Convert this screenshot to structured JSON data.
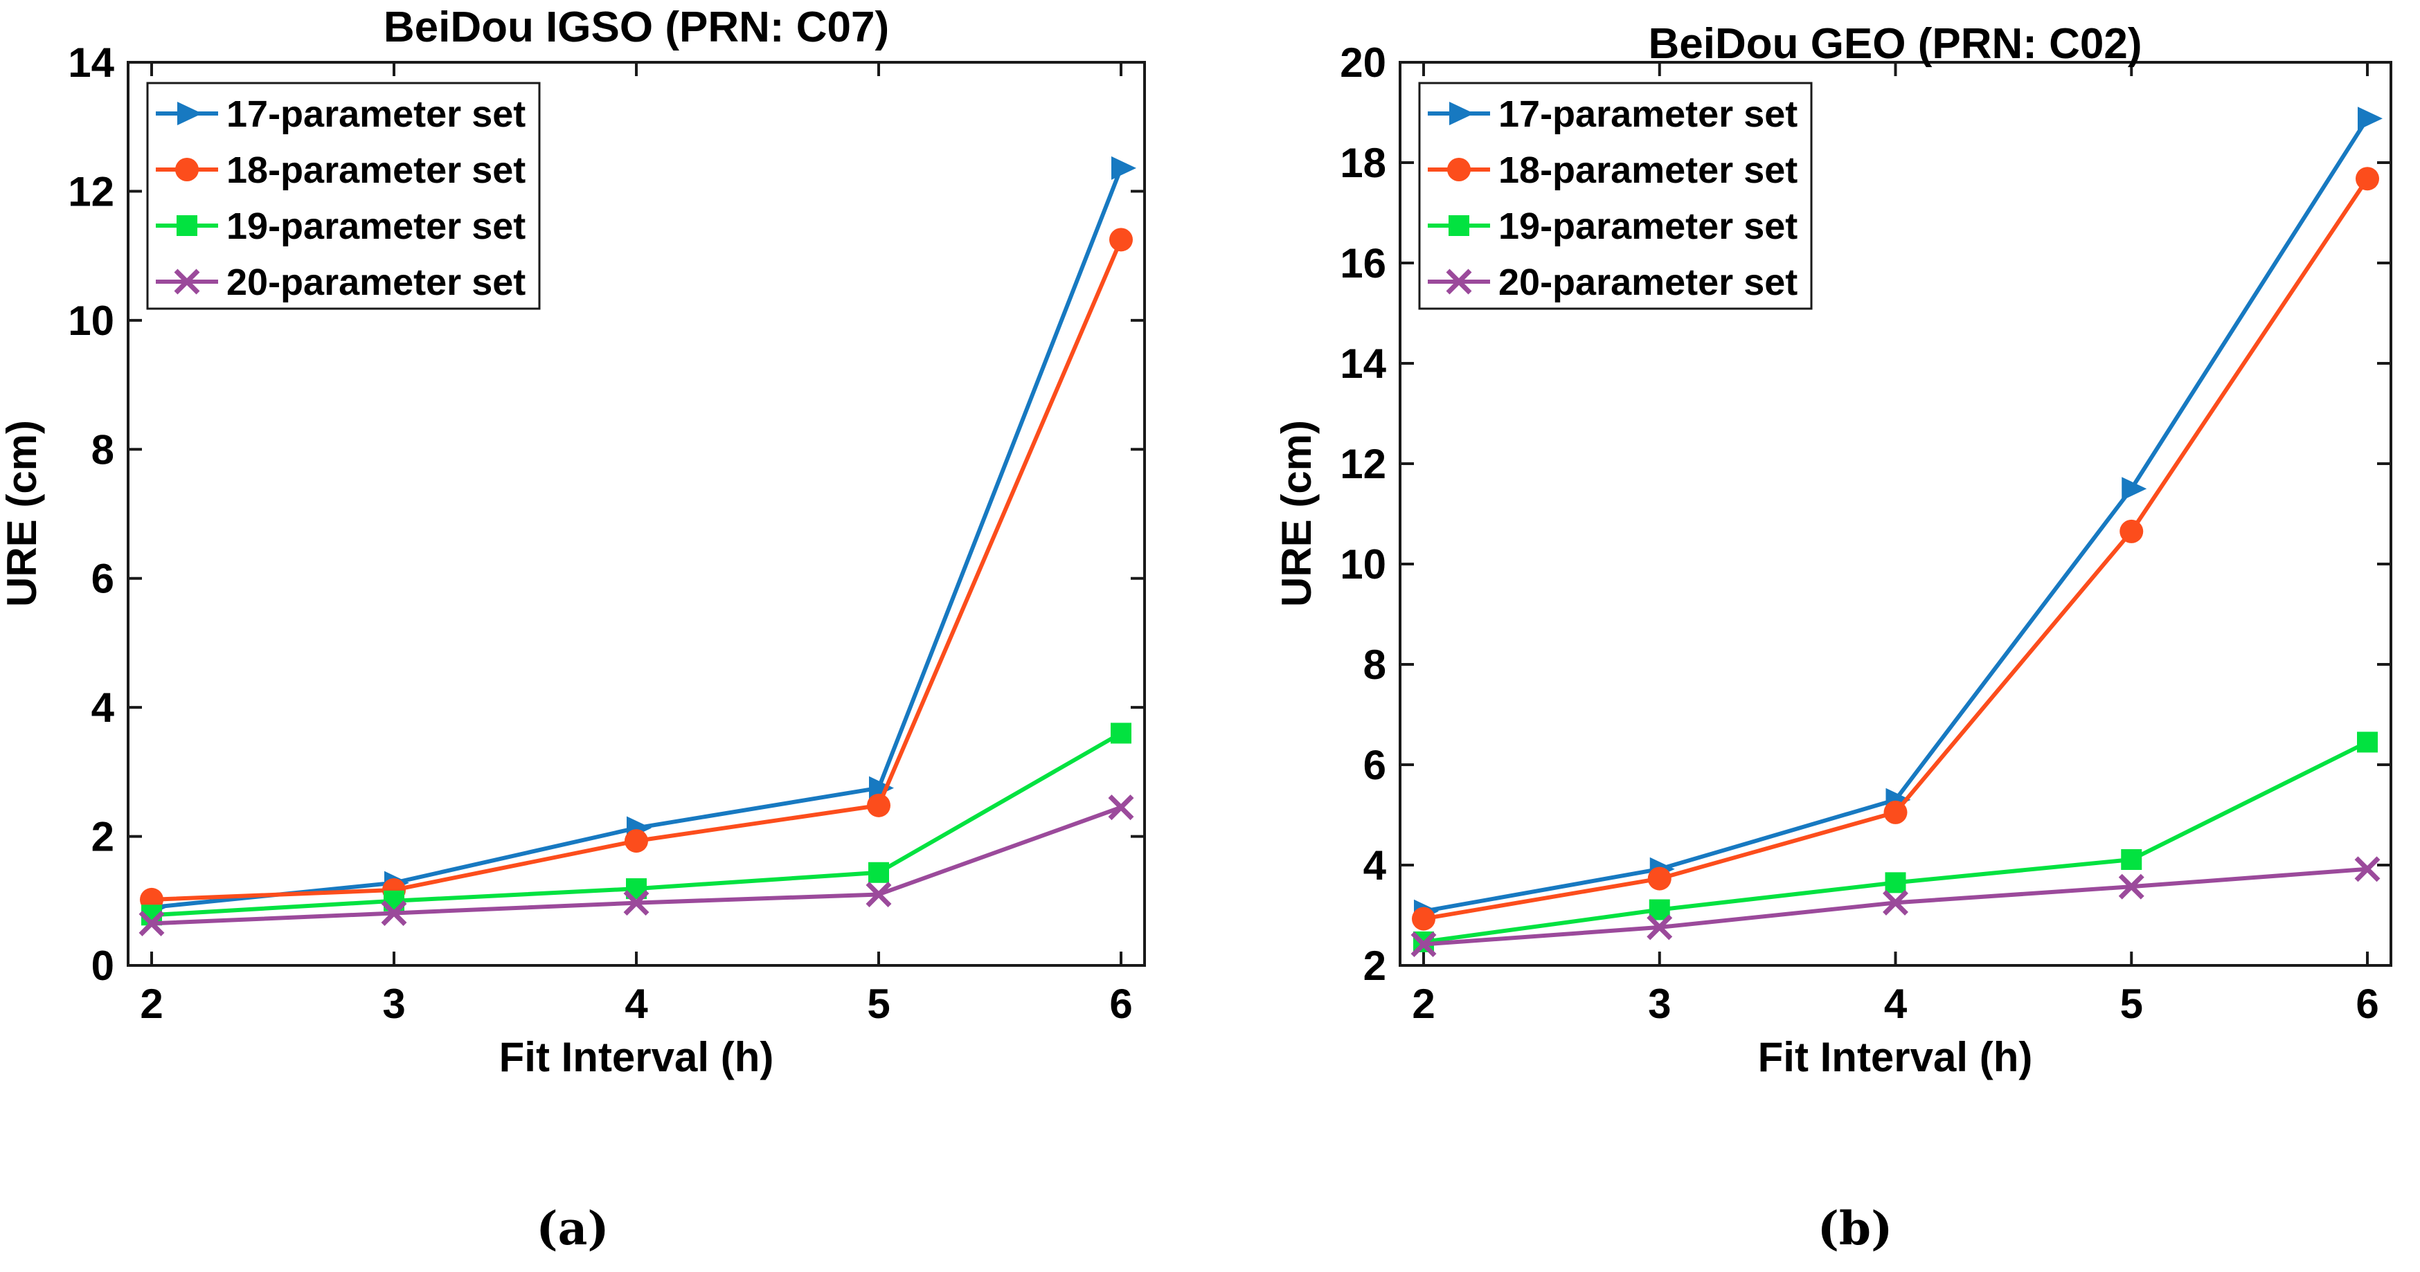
{
  "page": {
    "background": "#ffffff",
    "text_color": "#000000",
    "axis_color": "#1a1a1a"
  },
  "chart_data": [
    {
      "type": "line",
      "title": "BeiDou IGSO (PRN: C07)",
      "xlabel": "Fit Interval (h)",
      "ylabel": "URE (cm)",
      "caption": "(a)",
      "x": [
        2,
        3,
        4,
        5,
        6
      ],
      "xticks": [
        2,
        3,
        4,
        5,
        6
      ],
      "xlim": [
        1.9,
        6.1
      ],
      "ylim": [
        0,
        14
      ],
      "yticks": [
        0,
        2,
        4,
        6,
        8,
        10,
        12,
        14
      ],
      "grid": false,
      "legend_position": "northwest",
      "series": [
        {
          "name": "17-parameter set",
          "color": "#1779c1",
          "marker": "triangle-right",
          "values": [
            0.9,
            1.28,
            2.13,
            2.75,
            12.36
          ]
        },
        {
          "name": "18-parameter set",
          "color": "#fc4d1c",
          "marker": "circle",
          "values": [
            1.02,
            1.17,
            1.93,
            2.48,
            11.25
          ]
        },
        {
          "name": "19-parameter set",
          "color": "#02e240",
          "marker": "square",
          "values": [
            0.78,
            1.0,
            1.19,
            1.44,
            3.6
          ]
        },
        {
          "name": "20-parameter set",
          "color": "#9b4a9b",
          "marker": "x",
          "values": [
            0.65,
            0.81,
            0.97,
            1.1,
            2.45
          ]
        }
      ]
    },
    {
      "type": "line",
      "title": "BeiDou GEO (PRN: C02)",
      "xlabel": "Fit Interval (h)",
      "ylabel": "URE (cm)",
      "caption": "(b)",
      "x": [
        2,
        3,
        4,
        5,
        6
      ],
      "xticks": [
        2,
        3,
        4,
        5,
        6
      ],
      "xlim": [
        1.9,
        6.1
      ],
      "ylim": [
        2,
        20
      ],
      "yticks": [
        2,
        4,
        6,
        8,
        10,
        12,
        14,
        16,
        18,
        20
      ],
      "grid": false,
      "legend_position": "northwest",
      "series": [
        {
          "name": "17-parameter set",
          "color": "#1779c1",
          "marker": "triangle-right",
          "values": [
            3.08,
            3.92,
            5.3,
            11.5,
            18.88
          ]
        },
        {
          "name": "18-parameter set",
          "color": "#fc4d1c",
          "marker": "circle",
          "values": [
            2.93,
            3.73,
            5.05,
            10.65,
            17.68
          ]
        },
        {
          "name": "19-parameter set",
          "color": "#02e240",
          "marker": "square",
          "values": [
            2.47,
            3.11,
            3.65,
            4.11,
            6.45
          ]
        },
        {
          "name": "20-parameter set",
          "color": "#9b4a9b",
          "marker": "x",
          "values": [
            2.42,
            2.76,
            3.25,
            3.57,
            3.92
          ]
        }
      ]
    }
  ]
}
